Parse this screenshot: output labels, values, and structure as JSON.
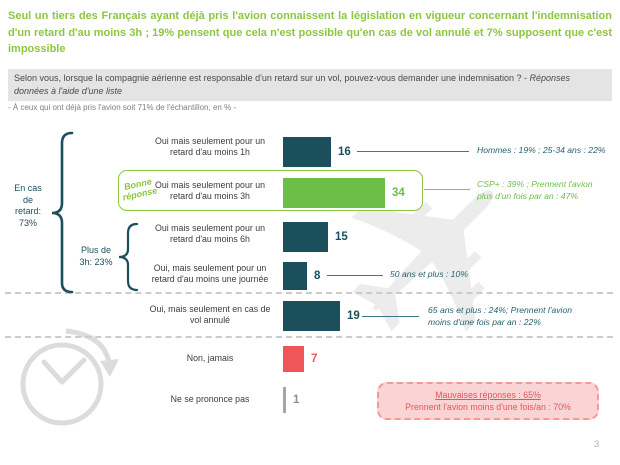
{
  "slide": {
    "title": "Seul un tiers des Français ayant déjà pris l'avion connaissent la législation en vigueur concernant l'indemnisation d'un retard d'au moins 3h ; 19% pensent que cela n'est possible qu'en cas de vol annulé et 7% supposent que c'est impossible",
    "question_main": "Selon vous, lorsque la compagnie aérienne est responsable d'un retard sur un vol, pouvez-vous demander une indemnisation ? - ",
    "question_italic": "Réponses données à l'aide d'une liste",
    "sample_note": "- À ceux qui ont déjà pris l'avion soit 71% de l'échantillon, en % -",
    "page_number": "3"
  },
  "groups": {
    "delay_label": "En cas\nde\nretard:\n73%",
    "over3h_label": "Plus de\n3h: 23%"
  },
  "correct_badge": "Bonne\nréponse",
  "chart_data": {
    "type": "bar",
    "orientation": "horizontal",
    "unit": "%",
    "xlim": [
      0,
      40
    ],
    "categories": [
      "Oui mais seulement pour un retard d'au moins 1h",
      "Oui mais seulement pour un retard d'au moins 3h",
      "Oui mais seulement pour un retard d'au moins 6h",
      "Oui, mais seulement pour un retard d'au moins une journée",
      "Oui, mais seulement en cas de vol annulé",
      "Non, jamais",
      "Ne se prononce pas"
    ],
    "values": [
      16,
      34,
      15,
      8,
      19,
      7,
      1
    ],
    "correct_answer_index": 1,
    "groups": [
      {
        "label": "En cas de retard: 73%",
        "covers": [
          0,
          1,
          2,
          3
        ]
      },
      {
        "label": "Plus de 3h: 23%",
        "covers": [
          2,
          3
        ]
      }
    ],
    "bars": [
      {
        "label": "Oui mais seulement pour un\nretard d'au moins 1h",
        "value": 16,
        "annotation": "Hommes : 19% ; 25-34 ans : 22%"
      },
      {
        "label": "Oui mais seulement pour un\nretard d'au moins 3h",
        "value": 34,
        "annotation": "CSP+ : 39% ; Prennent l'avion\nplus d'un fois par an : 47%"
      },
      {
        "label": "Oui mais seulement pour un\nretard d'au moins 6h",
        "value": 15,
        "annotation": ""
      },
      {
        "label": "Oui, mais seulement pour un\nretard d'au moins une journée",
        "value": 8,
        "annotation": "50 ans et plus : 10%"
      },
      {
        "label": "Oui, mais seulement en cas de\nvol annulé",
        "value": 19,
        "annotation": "65 ans et plus : 24%; Prennent l'avion\nmoins d'une fois par an : 22%"
      },
      {
        "label": "Non, jamais",
        "value": 7,
        "annotation": ""
      },
      {
        "label": "Ne se prononce pas",
        "value": 1,
        "annotation": ""
      }
    ]
  },
  "bad_answers_box": {
    "line1": "Mauvaises réponses : 65%",
    "line2": "Prennent l'avion moins d'une fois/an : 70%"
  },
  "colors": {
    "title_green": "#8DC63F",
    "bar_teal": "#1C4F5C",
    "bar_green": "#6CBE46",
    "bar_red": "#F0555A",
    "bar_gray": "#A6A6A6",
    "value_gray": "#909090",
    "annot_teal": "#27606E",
    "annot_green": "#6CBE46",
    "badge_green": "#8CC63E",
    "highlight_border": "#8CC63E",
    "question_bg": "#E4E4E4",
    "question_text": "#4A4A4A",
    "note_gray": "#7F7F7F",
    "brace_teal": "#1C4F5C",
    "leader_teal": "#3D7A85",
    "leader_green": "#8CC63E",
    "dash_gray": "#CBCBCB",
    "badbox_bg": "#FAD4D5",
    "badbox_border": "#F2999B",
    "badbox_text": "#E4555A",
    "watermark_gray": "#E0E0E0",
    "plane_gray": "#ECECEC",
    "page_gray": "#B0B0B0"
  }
}
